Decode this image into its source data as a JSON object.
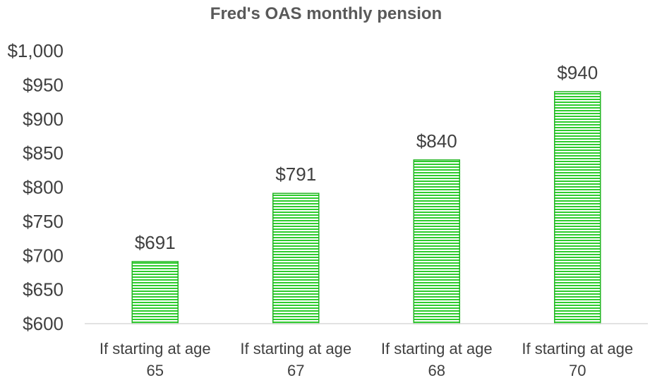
{
  "chart_data": {
    "type": "bar",
    "title": "Fred's OAS monthly pension",
    "categories": [
      [
        "If starting at age",
        "65"
      ],
      [
        "If starting at age",
        "67"
      ],
      [
        "If starting at age",
        "68"
      ],
      [
        "If starting at age",
        "70"
      ]
    ],
    "values": [
      691,
      791,
      840,
      940
    ],
    "data_labels": [
      "$691",
      "$791",
      "$840",
      "$940"
    ],
    "ylim": [
      600,
      1000
    ],
    "yticks": [
      600,
      650,
      700,
      750,
      800,
      850,
      900,
      950,
      1000
    ],
    "ytick_labels": [
      "$600",
      "$650",
      "$700",
      "$750",
      "$800",
      "$850",
      "$900",
      "$950",
      "$1,000"
    ],
    "grid": false,
    "legend": "none",
    "colors": {
      "bar_fill": "#ffffff",
      "bar_stripe": "#2ecc2e",
      "bar_border": "#22b422",
      "axis": "#d9d9d9",
      "text": "#404040",
      "title": "#595959"
    }
  }
}
